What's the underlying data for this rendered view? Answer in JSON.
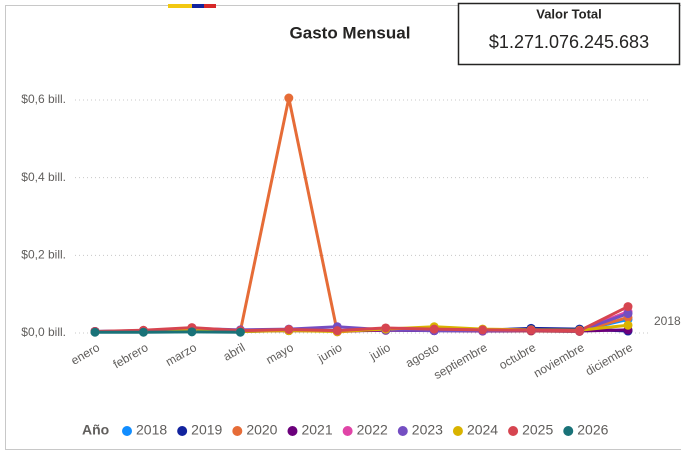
{
  "card": {
    "title": "Valor Total",
    "value": "$1.271.076.245.683"
  },
  "chart_data": {
    "type": "line",
    "title": "Gasto Mensual",
    "categories": [
      "enero",
      "febrero",
      "marzo",
      "abril",
      "mayo",
      "junio",
      "julio",
      "agosto",
      "septiembre",
      "octubre",
      "noviembre",
      "diciembre"
    ],
    "ylim": [
      0,
      0.7
    ],
    "yticks": [
      {
        "value": 0,
        "label": "$0,0 bill."
      },
      {
        "value": 0.2,
        "label": "$0,2 bill."
      },
      {
        "value": 0.4,
        "label": "$0,4 bill."
      },
      {
        "value": 0.6,
        "label": "$0,6 bill."
      }
    ],
    "grid": true,
    "legend_title": "Año",
    "end_label": "2018",
    "series": [
      {
        "name": "2018",
        "color": "#118dff",
        "values": [
          0.003,
          0.004,
          0.006,
          0.004,
          0.007,
          0.005,
          0.008,
          0.006,
          0.006,
          0.007,
          0.006,
          0.035
        ]
      },
      {
        "name": "2019",
        "color": "#12239e",
        "values": [
          0.004,
          0.005,
          0.007,
          0.005,
          0.008,
          0.006,
          0.008,
          0.007,
          0.007,
          0.012,
          0.01,
          0.005
        ]
      },
      {
        "name": "2020",
        "color": "#e66c37",
        "values": [
          0.003,
          0.005,
          0.01,
          0.005,
          0.605,
          0.003,
          0.01,
          0.008,
          0.006,
          0.005,
          0.004,
          0.04
        ]
      },
      {
        "name": "2021",
        "color": "#6b007b",
        "values": [
          0.004,
          0.004,
          0.006,
          0.004,
          0.006,
          0.005,
          0.007,
          0.006,
          0.005,
          0.006,
          0.005,
          0.008
        ]
      },
      {
        "name": "2022",
        "color": "#e044a7",
        "values": [
          0.003,
          0.004,
          0.008,
          0.005,
          0.007,
          0.006,
          0.009,
          0.007,
          0.006,
          0.008,
          0.006,
          0.055
        ]
      },
      {
        "name": "2023",
        "color": "#744ec2",
        "values": [
          0.004,
          0.006,
          0.012,
          0.008,
          0.01,
          0.016,
          0.008,
          0.006,
          0.006,
          0.007,
          0.006,
          0.05
        ]
      },
      {
        "name": "2024",
        "color": "#d9b300",
        "values": [
          0.003,
          0.004,
          0.007,
          0.004,
          0.006,
          0.004,
          0.01,
          0.016,
          0.01,
          0.008,
          0.007,
          0.02
        ]
      },
      {
        "name": "2025",
        "color": "#d64550",
        "values": [
          0.004,
          0.007,
          0.014,
          0.006,
          0.009,
          0.006,
          0.013,
          0.01,
          0.008,
          0.007,
          0.006,
          0.068
        ]
      },
      {
        "name": "2026",
        "color": "#197278",
        "values": [
          0.002,
          0.002,
          0.003,
          0.002,
          null,
          null,
          null,
          null,
          null,
          null,
          null,
          null
        ]
      }
    ]
  }
}
